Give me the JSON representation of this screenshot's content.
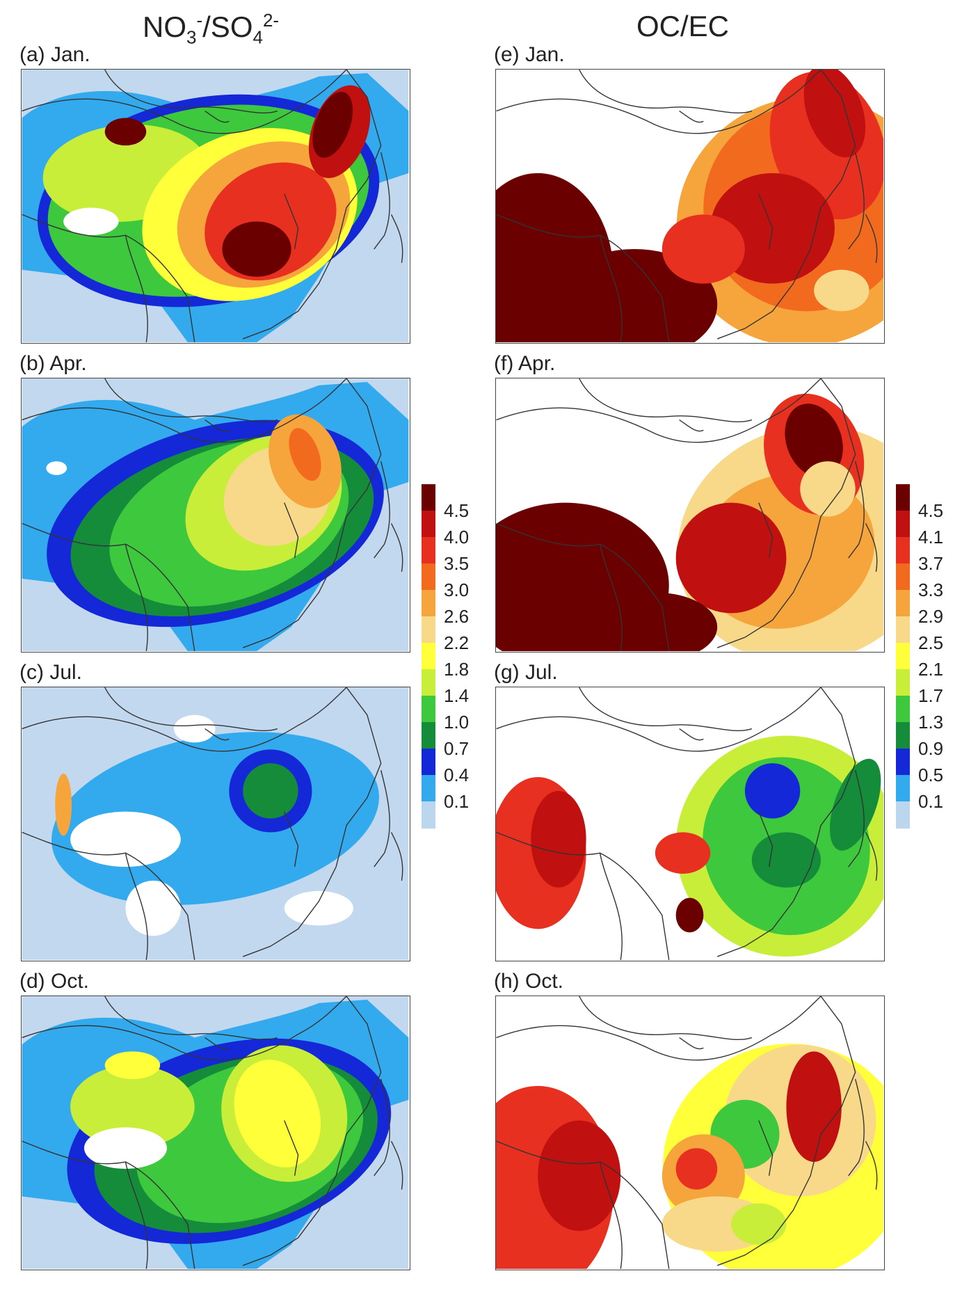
{
  "titles": {
    "left": {
      "base1": "NO",
      "sub1": "3",
      "sup1": "-",
      "slash": "/SO",
      "sub2": "4",
      "sup2": "2-"
    },
    "right": "OC/EC"
  },
  "panels": [
    {
      "id": "a",
      "label": "(a) Jan."
    },
    {
      "id": "b",
      "label": "(b) Apr."
    },
    {
      "id": "c",
      "label": "(c) Jul."
    },
    {
      "id": "d",
      "label": "(d) Oct."
    },
    {
      "id": "e",
      "label": "(e) Jan."
    },
    {
      "id": "f",
      "label": "(f) Apr."
    },
    {
      "id": "g",
      "label": "(g) Jul."
    },
    {
      "id": "h",
      "label": "(h) Oct."
    }
  ],
  "colorbars": {
    "no3_so4": {
      "ticks": [
        "4.5",
        "4.0",
        "3.5",
        "3.0",
        "2.6",
        "2.2",
        "1.8",
        "1.4",
        "1.0",
        "0.7",
        "0.4",
        "0.1"
      ],
      "colors": [
        "#6b0000",
        "#c01010",
        "#e83020",
        "#f26a1e",
        "#f6a43c",
        "#f8d98a",
        "#ffff3a",
        "#c8ee3a",
        "#3ec83e",
        "#148c3a",
        "#1428d8",
        "#33aaee",
        "#bcd6ee"
      ]
    },
    "oc_ec": {
      "ticks": [
        "4.5",
        "4.1",
        "3.7",
        "3.3",
        "2.9",
        "2.5",
        "2.1",
        "1.7",
        "1.3",
        "0.9",
        "0.5",
        "0.1"
      ],
      "colors": [
        "#6b0000",
        "#c01010",
        "#e83020",
        "#f26a1e",
        "#f6a43c",
        "#f8d98a",
        "#ffff3a",
        "#c8ee3a",
        "#3ec83e",
        "#148c3a",
        "#1428d8",
        "#33aaee",
        "#bcd6ee"
      ]
    }
  },
  "map_colors": {
    "ocean": "#c2d8ee",
    "white": "#ffffff",
    "lightblue": "#33aaee",
    "blue": "#1428d8",
    "darkgreen": "#148c3a",
    "green": "#3ec83e",
    "lightgreen": "#c8ee3a",
    "yellow": "#ffff3a",
    "lightorange": "#f8d98a",
    "orange": "#f6a43c",
    "darkorange": "#f26a1e",
    "red": "#e83020",
    "crimson": "#c01010",
    "maroon": "#6b0000",
    "border": "#333333"
  }
}
